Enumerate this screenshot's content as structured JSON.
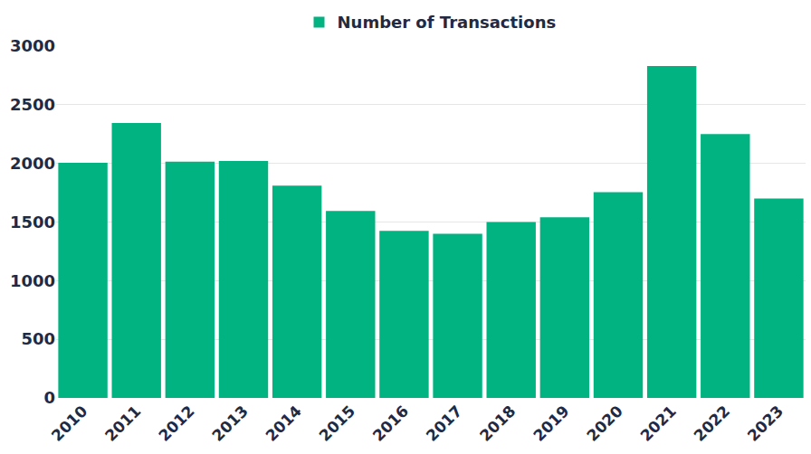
{
  "chart_data": {
    "type": "bar",
    "categories": [
      "2010",
      "2011",
      "2012",
      "2013",
      "2014",
      "2015",
      "2016",
      "2017",
      "2018",
      "2019",
      "2020",
      "2021",
      "2022",
      "2023"
    ],
    "series": [
      {
        "name": "Number of Transactions",
        "color": "#00b381",
        "values": [
          2005,
          2345,
          2015,
          2020,
          1810,
          1595,
          1425,
          1400,
          1500,
          1540,
          1755,
          2830,
          2250,
          1700
        ]
      }
    ],
    "ylim": [
      0,
      3000
    ],
    "yticks": [
      0,
      500,
      1000,
      1500,
      2000,
      2500,
      3000
    ],
    "grid": true,
    "legend": "top"
  }
}
